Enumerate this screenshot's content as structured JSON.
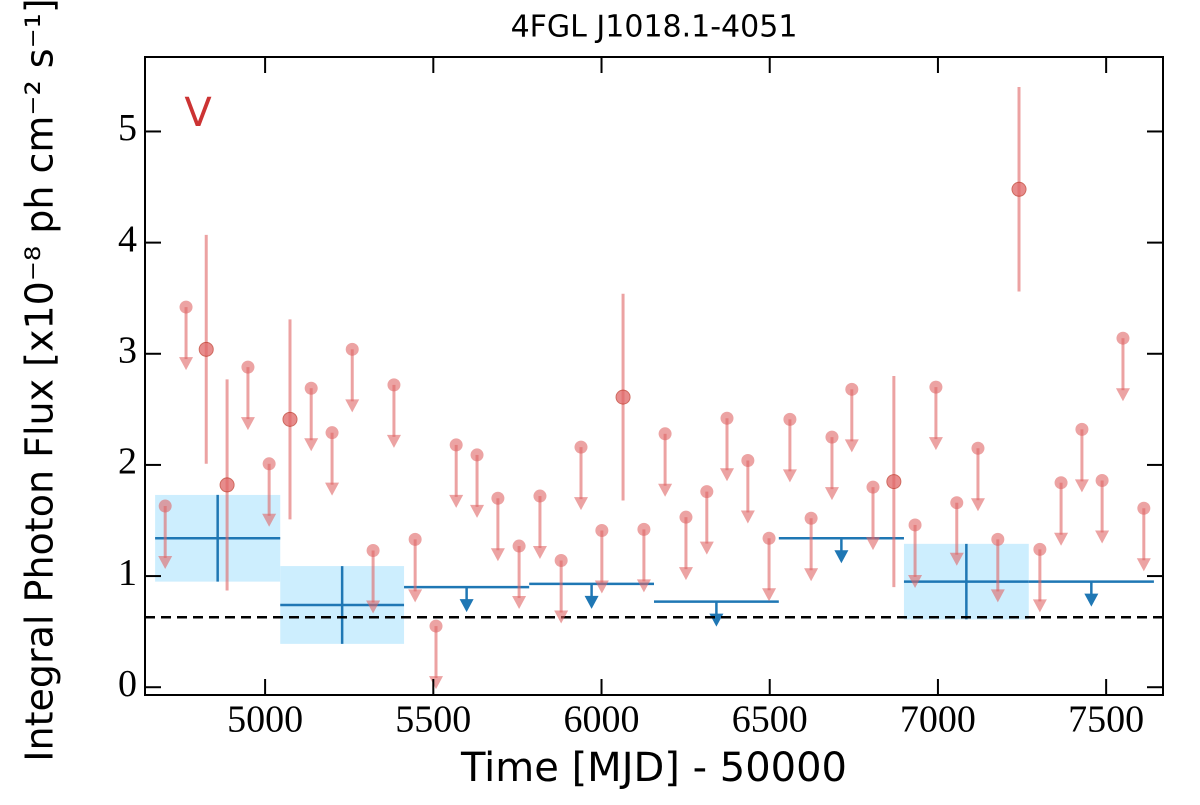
{
  "chart_data": {
    "type": "lightcurve",
    "title": "4FGL J1018.1-4051",
    "xlabel": "Time [MJD] - 50000",
    "ylabel": "Integral Photon Flux [x10⁻⁸ ph cm⁻² s⁻¹]",
    "annotation": "V",
    "xlim": [
      4643,
      7669
    ],
    "ylim": [
      -0.07,
      5.67
    ],
    "xticks": [
      5000,
      5500,
      6000,
      6500,
      7000,
      7500
    ],
    "yticks": [
      0,
      1,
      2,
      3,
      4,
      5
    ],
    "baseline": 0.63,
    "series": [
      {
        "kind": "detection",
        "color": "#e06666",
        "x": [
          4825,
          4887,
          5074,
          6064,
          6869,
          7241
        ],
        "values": [
          3.04,
          1.82,
          2.41,
          2.61,
          1.85,
          4.48
        ],
        "errors": [
          1.03,
          0.95,
          0.9,
          0.93,
          0.95,
          0.92
        ]
      },
      {
        "kind": "upper_limit",
        "color": "#e06666",
        "x": [
          4703,
          4765,
          4949,
          5012,
          5137,
          5199,
          5259,
          5321,
          5383,
          5446,
          5508,
          5568,
          5630,
          5692,
          5755,
          5817,
          5880,
          5939,
          6001,
          6126,
          6189,
          6251,
          6313,
          6373,
          6435,
          6498,
          6560,
          6623,
          6685,
          6744,
          6807,
          6932,
          6994,
          7056,
          7119,
          7178,
          7303,
          7366,
          7428,
          7488,
          7550,
          7612
        ],
        "values": [
          1.63,
          3.42,
          2.88,
          2.01,
          2.69,
          2.29,
          3.04,
          1.23,
          2.72,
          1.33,
          0.55,
          2.18,
          2.09,
          1.7,
          1.27,
          1.72,
          1.14,
          2.16,
          1.41,
          1.42,
          2.28,
          1.53,
          1.76,
          2.42,
          2.04,
          1.34,
          2.41,
          1.52,
          2.25,
          2.68,
          1.8,
          1.46,
          2.7,
          1.66,
          2.15,
          1.33,
          1.24,
          1.84,
          2.32,
          1.86,
          3.14,
          1.61
        ]
      },
      {
        "kind": "binned",
        "color": "#1f77b4",
        "shade": "#cdeefe",
        "bins": [
          4673,
          5045,
          5413,
          5785,
          6156,
          6527,
          6899,
          7270,
          7642
        ],
        "values": [
          1.34,
          0.74,
          0.9,
          0.93,
          0.77,
          1.34,
          0.95,
          0.95
        ],
        "errors": [
          0.39,
          0.35,
          null,
          null,
          null,
          null,
          0.34,
          null
        ]
      }
    ]
  }
}
